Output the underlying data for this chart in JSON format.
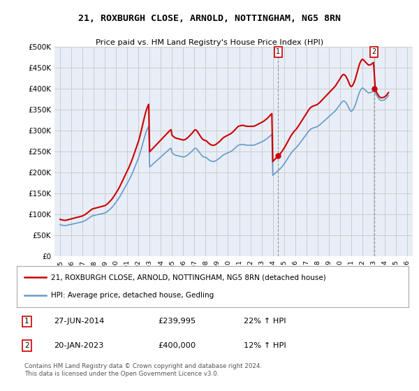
{
  "title": "21, ROXBURGH CLOSE, ARNOLD, NOTTINGHAM, NG5 8RN",
  "subtitle": "Price paid vs. HM Land Registry's House Price Index (HPI)",
  "legend_line1": "21, ROXBURGH CLOSE, ARNOLD, NOTTINGHAM, NG5 8RN (detached house)",
  "legend_line2": "HPI: Average price, detached house, Gedling",
  "annotation1_date": "27-JUN-2014",
  "annotation1_price": "£239,995",
  "annotation1_hpi": "22% ↑ HPI",
  "annotation2_date": "20-JAN-2023",
  "annotation2_price": "£400,000",
  "annotation2_hpi": "12% ↑ HPI",
  "footnote": "Contains HM Land Registry data © Crown copyright and database right 2024.\nThis data is licensed under the Open Government Licence v3.0.",
  "line1_color": "#cc0000",
  "line2_color": "#6699cc",
  "background_color": "#ffffff",
  "grid_color": "#cccccc",
  "plot_bg_color": "#e8eef7",
  "ylim": [
    0,
    500000
  ],
  "yticks": [
    0,
    50000,
    100000,
    150000,
    200000,
    250000,
    300000,
    350000,
    400000,
    450000,
    500000
  ],
  "ytick_labels": [
    "£0",
    "£50K",
    "£100K",
    "£150K",
    "£200K",
    "£250K",
    "£300K",
    "£350K",
    "£400K",
    "£450K",
    "£500K"
  ],
  "xlim_start": 1994.5,
  "xlim_end": 2026.5,
  "sale1_x": 2014.49,
  "sale1_y": 239995,
  "sale2_x": 2023.05,
  "sale2_y": 400000,
  "xticks": [
    1995,
    1996,
    1997,
    1998,
    1999,
    2000,
    2001,
    2002,
    2003,
    2004,
    2005,
    2006,
    2007,
    2008,
    2009,
    2010,
    2011,
    2012,
    2013,
    2014,
    2015,
    2016,
    2017,
    2018,
    2019,
    2020,
    2021,
    2022,
    2023,
    2024,
    2025,
    2026
  ]
}
